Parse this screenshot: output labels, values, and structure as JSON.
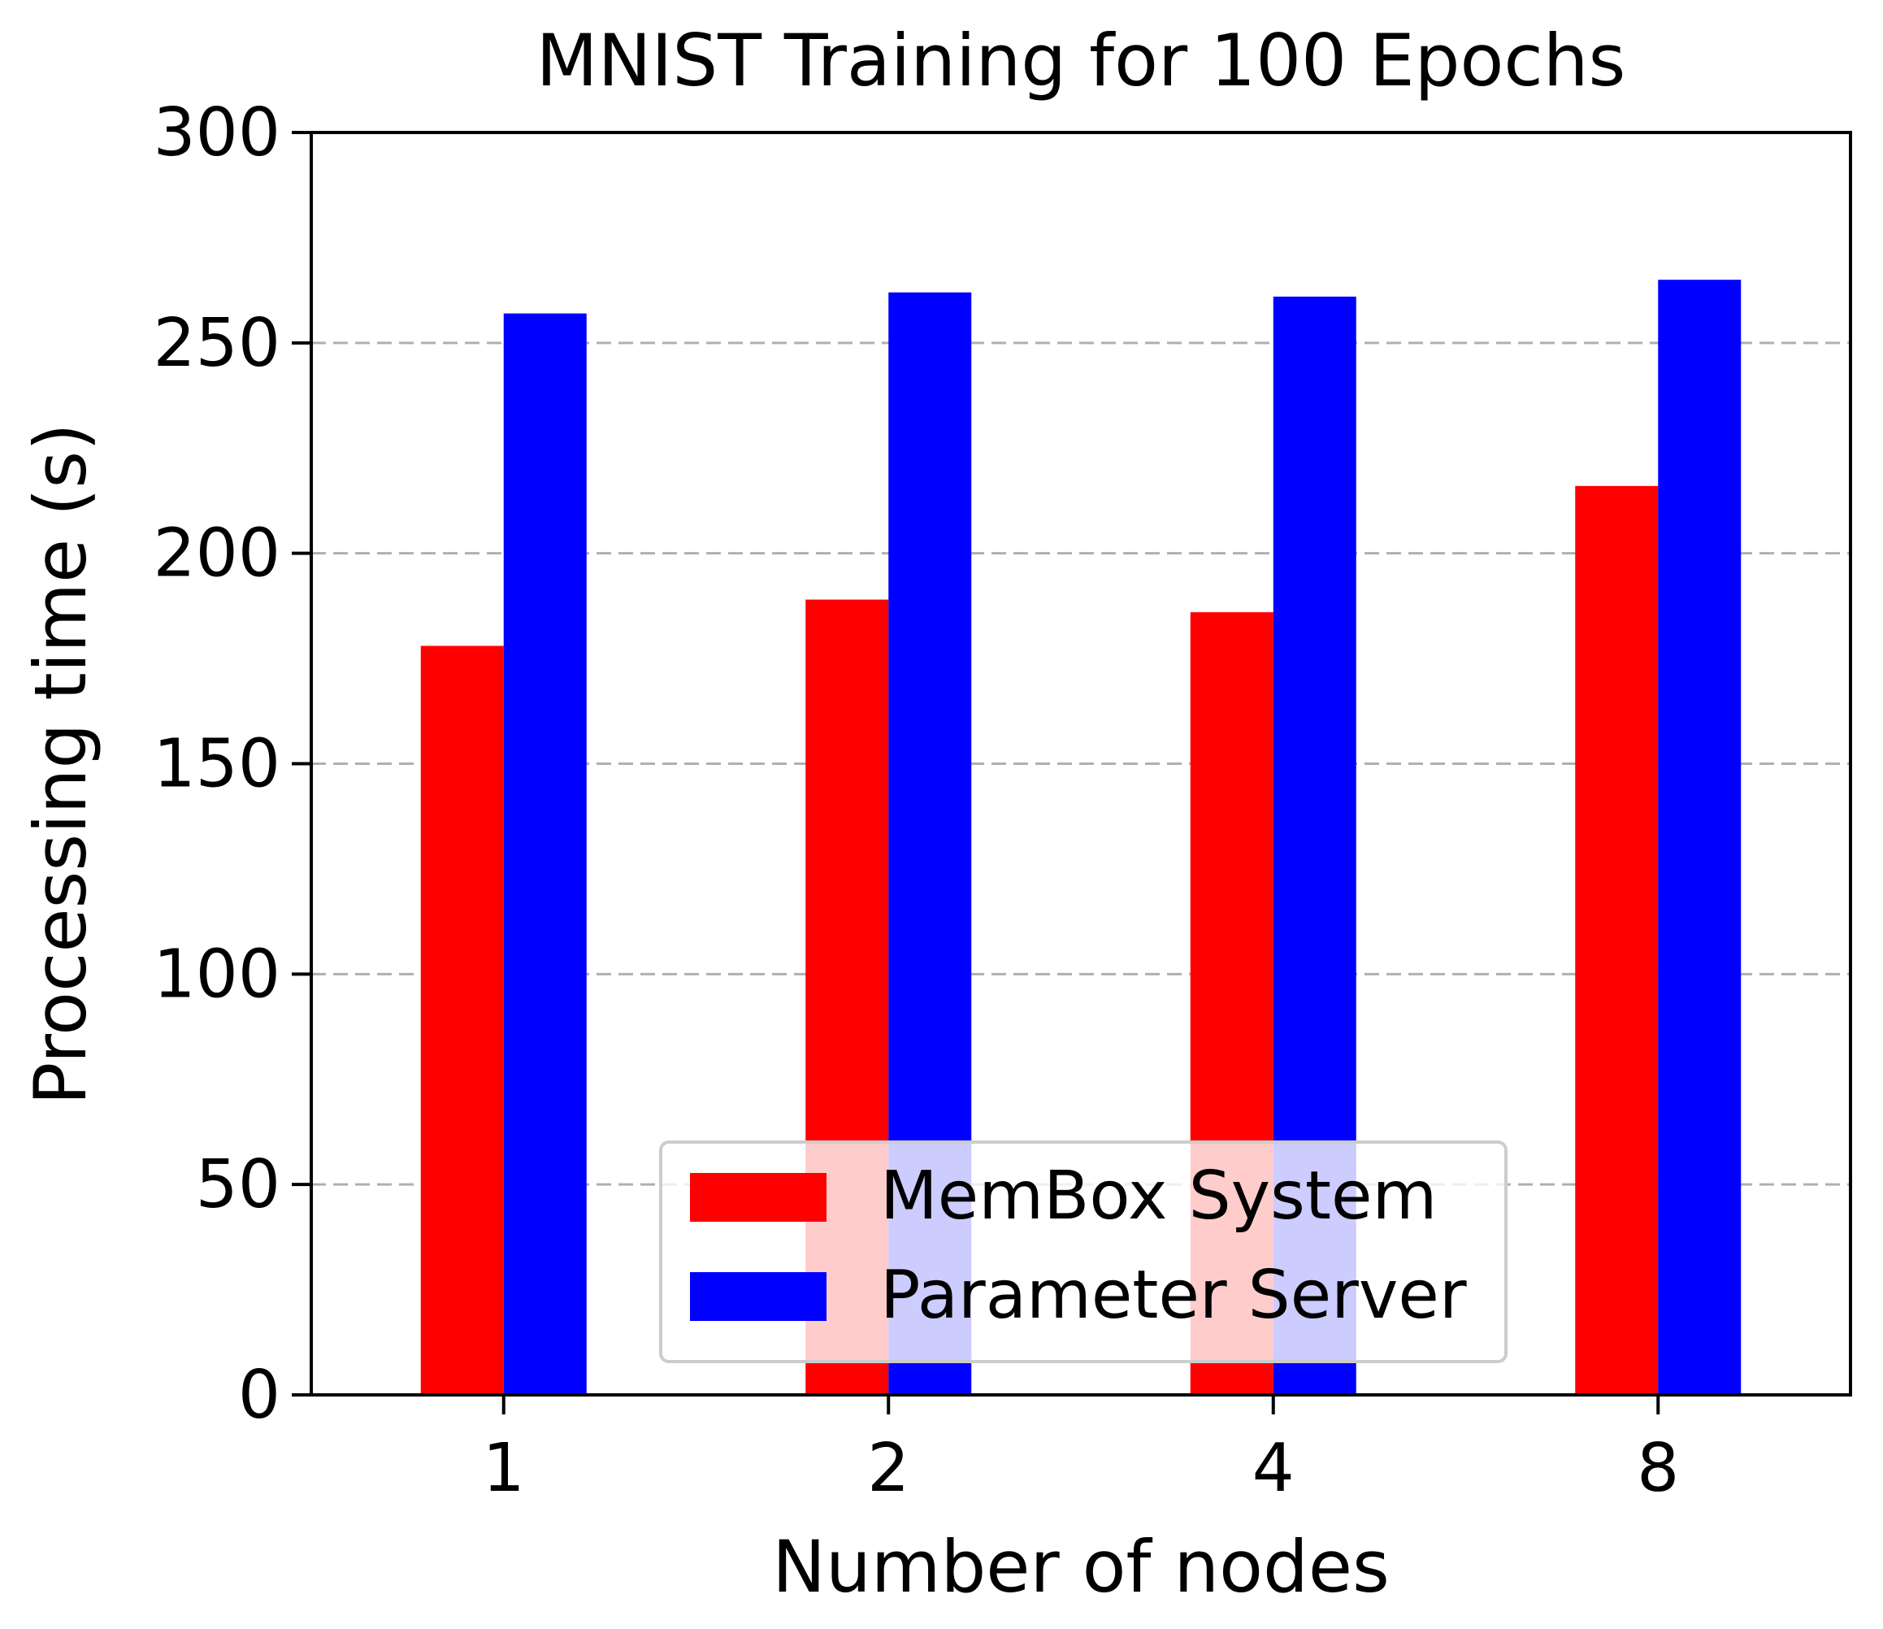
{
  "chart_data": {
    "type": "bar",
    "title": "MNIST Training for 100 Epochs",
    "xlabel": "Number of nodes",
    "ylabel": "Processing time (s)",
    "categories": [
      "1",
      "2",
      "4",
      "8"
    ],
    "series": [
      {
        "name": "MemBox System",
        "values": [
          178,
          189,
          186,
          216
        ],
        "color": "#ff0000"
      },
      {
        "name": "Parameter Server",
        "values": [
          257,
          262,
          261,
          265
        ],
        "color": "#0000ff"
      }
    ],
    "ylim": [
      0,
      300
    ],
    "yticks": [
      0,
      50,
      100,
      150,
      200,
      250,
      300
    ],
    "grid": "y-dashed",
    "legend_position": "lower-center",
    "legend": [
      "MemBox System",
      "Parameter Server"
    ]
  }
}
